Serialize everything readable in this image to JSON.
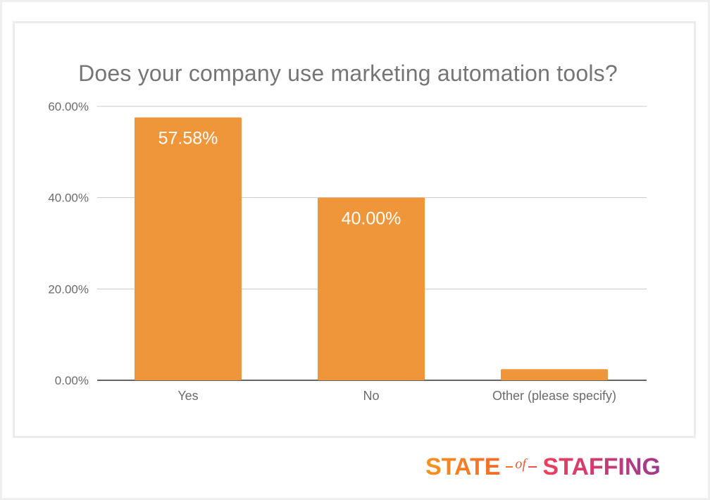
{
  "chart_data": {
    "type": "bar",
    "title": "Does your company use marketing automation tools?",
    "categories": [
      "Yes",
      "No",
      "Other (please specify)"
    ],
    "values": [
      57.58,
      40.0,
      2.42
    ],
    "data_labels": [
      "57.58%",
      "40.00%",
      ""
    ],
    "ylim": [
      0,
      60
    ],
    "yticks": [
      0,
      20,
      40,
      60
    ],
    "ytick_labels": [
      "0.00%",
      "20.00%",
      "40.00%",
      "60.00%"
    ],
    "xlabel": "",
    "ylabel": "",
    "grid": true,
    "bar_color": "#f0963a",
    "label_color": "#ffffff"
  },
  "logo": {
    "state": "STATE",
    "of": "of",
    "staffing": "STAFFING"
  }
}
